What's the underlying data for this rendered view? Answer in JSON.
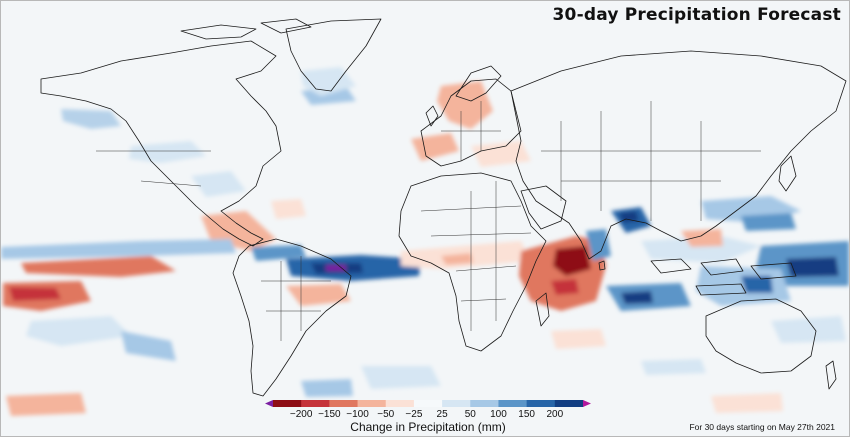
{
  "title": "30-day Precipitation Forecast",
  "footnote": "For 30 days starting on May 27th 2021",
  "colorbar": {
    "label": "Change in Precipitation (mm)",
    "ticks": [
      "−200",
      "−150",
      "−100",
      "−50",
      "−25",
      "25",
      "50",
      "100",
      "150",
      "200"
    ],
    "colors": [
      "#8e0e16",
      "#c5333a",
      "#e0775f",
      "#f4b49c",
      "#fbe1d6",
      "#f6f9fb",
      "#d6e6f3",
      "#a6c8e6",
      "#5b95c8",
      "#2765a8",
      "#123e82"
    ],
    "extend_low_color": "#7b1fa2",
    "extend_high_color": "#b3179c"
  },
  "map": {
    "projection": "equirectangular",
    "ocean_color": "#f3f6f8",
    "border_color": "#1a1a1a"
  }
}
